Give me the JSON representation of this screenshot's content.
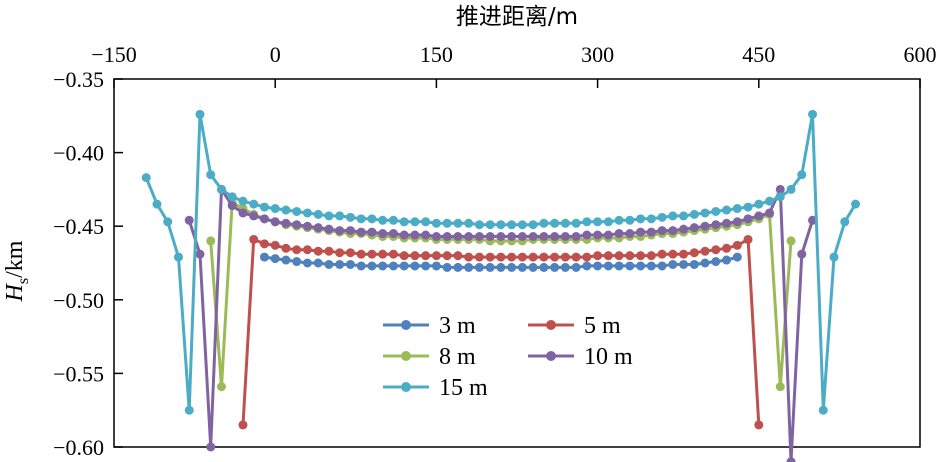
{
  "chart_data": {
    "type": "line",
    "title": "",
    "xlabel": "推进距离/m",
    "ylabel_main": "H",
    "ylabel_sub": "s",
    "ylabel_unit": "/km",
    "xlim": [
      -150,
      600
    ],
    "ylim": [
      -0.6,
      -0.35
    ],
    "x_ticks": [
      -150,
      0,
      150,
      300,
      450,
      600
    ],
    "x_tick_labels": [
      "−150",
      "0",
      "150",
      "300",
      "450",
      "600"
    ],
    "y_ticks": [
      -0.35,
      -0.4,
      -0.45,
      -0.5,
      -0.55,
      -0.6
    ],
    "y_tick_labels": [
      "−0.35",
      "−0.40",
      "−0.45",
      "−0.50",
      "−0.55",
      "−0.60"
    ],
    "x_axis_position": "top",
    "grid": false,
    "legend": {
      "position": "lower-center",
      "columns": 2
    },
    "series": [
      {
        "name": "3 m",
        "color": "#4f81bd",
        "x": [
          -10,
          0,
          10,
          20,
          30,
          40,
          50,
          60,
          70,
          80,
          90,
          100,
          110,
          120,
          130,
          140,
          150,
          160,
          170,
          180,
          190,
          200,
          210,
          220,
          230,
          240,
          250,
          260,
          270,
          280,
          290,
          300,
          310,
          320,
          330,
          340,
          350,
          360,
          370,
          380,
          390,
          400,
          410,
          420,
          430
        ],
        "y": [
          -0.471,
          -0.472,
          -0.473,
          -0.474,
          -0.475,
          -0.475,
          -0.476,
          -0.476,
          -0.476,
          -0.477,
          -0.477,
          -0.477,
          -0.477,
          -0.477,
          -0.477,
          -0.477,
          -0.477,
          -0.478,
          -0.478,
          -0.478,
          -0.478,
          -0.478,
          -0.478,
          -0.478,
          -0.478,
          -0.478,
          -0.478,
          -0.478,
          -0.478,
          -0.478,
          -0.477,
          -0.477,
          -0.477,
          -0.477,
          -0.477,
          -0.477,
          -0.477,
          -0.477,
          -0.476,
          -0.476,
          -0.476,
          -0.475,
          -0.474,
          -0.473,
          -0.471
        ]
      },
      {
        "name": "5 m",
        "color": "#c0504d",
        "x": [
          -30,
          -20,
          -10,
          0,
          10,
          20,
          30,
          40,
          50,
          60,
          70,
          80,
          90,
          100,
          110,
          120,
          130,
          140,
          150,
          160,
          170,
          180,
          190,
          200,
          210,
          220,
          230,
          240,
          250,
          260,
          270,
          280,
          290,
          300,
          310,
          320,
          330,
          340,
          350,
          360,
          370,
          380,
          390,
          400,
          410,
          420,
          430,
          440,
          450
        ],
        "y": [
          -0.585,
          -0.459,
          -0.462,
          -0.463,
          -0.465,
          -0.466,
          -0.466,
          -0.467,
          -0.467,
          -0.468,
          -0.468,
          -0.469,
          -0.469,
          -0.469,
          -0.469,
          -0.47,
          -0.47,
          -0.47,
          -0.47,
          -0.47,
          -0.47,
          -0.471,
          -0.471,
          -0.471,
          -0.471,
          -0.471,
          -0.471,
          -0.471,
          -0.471,
          -0.471,
          -0.471,
          -0.471,
          -0.471,
          -0.47,
          -0.47,
          -0.47,
          -0.47,
          -0.47,
          -0.47,
          -0.469,
          -0.469,
          -0.469,
          -0.468,
          -0.467,
          -0.466,
          -0.465,
          -0.463,
          -0.459,
          -0.585
        ]
      },
      {
        "name": "8 m",
        "color": "#9bbb59",
        "x": [
          -60,
          -50,
          -40,
          -30,
          -20,
          -10,
          0,
          10,
          20,
          30,
          40,
          50,
          60,
          70,
          80,
          90,
          100,
          110,
          120,
          130,
          140,
          150,
          160,
          170,
          180,
          190,
          200,
          210,
          220,
          230,
          240,
          250,
          260,
          270,
          280,
          290,
          300,
          310,
          320,
          330,
          340,
          350,
          360,
          370,
          380,
          390,
          400,
          410,
          420,
          430,
          440,
          450,
          460,
          470,
          480
        ],
        "y": [
          -0.46,
          -0.559,
          -0.434,
          -0.438,
          -0.442,
          -0.445,
          -0.447,
          -0.449,
          -0.45,
          -0.451,
          -0.452,
          -0.453,
          -0.454,
          -0.455,
          -0.455,
          -0.456,
          -0.457,
          -0.457,
          -0.458,
          -0.458,
          -0.458,
          -0.459,
          -0.459,
          -0.459,
          -0.459,
          -0.459,
          -0.46,
          -0.46,
          -0.46,
          -0.46,
          -0.459,
          -0.459,
          -0.459,
          -0.459,
          -0.459,
          -0.459,
          -0.458,
          -0.458,
          -0.458,
          -0.457,
          -0.457,
          -0.456,
          -0.455,
          -0.455,
          -0.454,
          -0.453,
          -0.452,
          -0.451,
          -0.45,
          -0.449,
          -0.447,
          -0.445,
          -0.442,
          -0.559,
          -0.46
        ]
      },
      {
        "name": "10 m",
        "color": "#8064a2",
        "x": [
          -80,
          -70,
          -60,
          -50,
          -40,
          -30,
          -20,
          -10,
          0,
          10,
          20,
          30,
          40,
          50,
          60,
          70,
          80,
          90,
          100,
          110,
          120,
          130,
          140,
          150,
          160,
          170,
          180,
          190,
          200,
          210,
          220,
          230,
          240,
          250,
          260,
          270,
          280,
          290,
          300,
          310,
          320,
          330,
          340,
          350,
          360,
          370,
          380,
          390,
          400,
          410,
          420,
          430,
          440,
          450,
          460,
          470,
          480,
          490,
          500
        ],
        "y": [
          -0.446,
          -0.469,
          -0.6,
          -0.425,
          -0.436,
          -0.441,
          -0.443,
          -0.445,
          -0.447,
          -0.448,
          -0.449,
          -0.45,
          -0.451,
          -0.452,
          -0.453,
          -0.453,
          -0.454,
          -0.454,
          -0.455,
          -0.455,
          -0.456,
          -0.456,
          -0.456,
          -0.457,
          -0.457,
          -0.457,
          -0.457,
          -0.457,
          -0.457,
          -0.457,
          -0.457,
          -0.457,
          -0.457,
          -0.457,
          -0.457,
          -0.457,
          -0.457,
          -0.456,
          -0.456,
          -0.456,
          -0.455,
          -0.455,
          -0.454,
          -0.454,
          -0.453,
          -0.453,
          -0.452,
          -0.451,
          -0.45,
          -0.449,
          -0.448,
          -0.447,
          -0.445,
          -0.443,
          -0.441,
          -0.425,
          -0.61,
          -0.469,
          -0.446
        ]
      },
      {
        "name": "15 m",
        "color": "#4bacc6",
        "x": [
          -120,
          -110,
          -100,
          -90,
          -80,
          -70,
          -60,
          -50,
          -40,
          -30,
          -20,
          -10,
          0,
          10,
          20,
          30,
          40,
          50,
          60,
          70,
          80,
          90,
          100,
          110,
          120,
          130,
          140,
          150,
          160,
          170,
          180,
          190,
          200,
          210,
          220,
          230,
          240,
          250,
          260,
          270,
          280,
          290,
          300,
          310,
          320,
          330,
          340,
          350,
          360,
          370,
          380,
          390,
          400,
          410,
          420,
          430,
          440,
          450,
          460,
          470,
          480,
          490,
          500,
          510,
          520,
          530,
          540
        ],
        "y": [
          -0.417,
          -0.435,
          -0.447,
          -0.471,
          -0.575,
          -0.374,
          -0.415,
          -0.425,
          -0.43,
          -0.433,
          -0.435,
          -0.437,
          -0.438,
          -0.439,
          -0.44,
          -0.441,
          -0.442,
          -0.443,
          -0.443,
          -0.444,
          -0.445,
          -0.445,
          -0.446,
          -0.446,
          -0.447,
          -0.447,
          -0.447,
          -0.448,
          -0.448,
          -0.448,
          -0.448,
          -0.449,
          -0.449,
          -0.449,
          -0.449,
          -0.449,
          -0.449,
          -0.448,
          -0.448,
          -0.448,
          -0.448,
          -0.447,
          -0.447,
          -0.447,
          -0.446,
          -0.446,
          -0.445,
          -0.445,
          -0.444,
          -0.443,
          -0.443,
          -0.442,
          -0.441,
          -0.44,
          -0.439,
          -0.438,
          -0.437,
          -0.435,
          -0.433,
          -0.43,
          -0.425,
          -0.415,
          -0.374,
          -0.575,
          -0.471,
          -0.447,
          -0.435
        ]
      }
    ]
  }
}
